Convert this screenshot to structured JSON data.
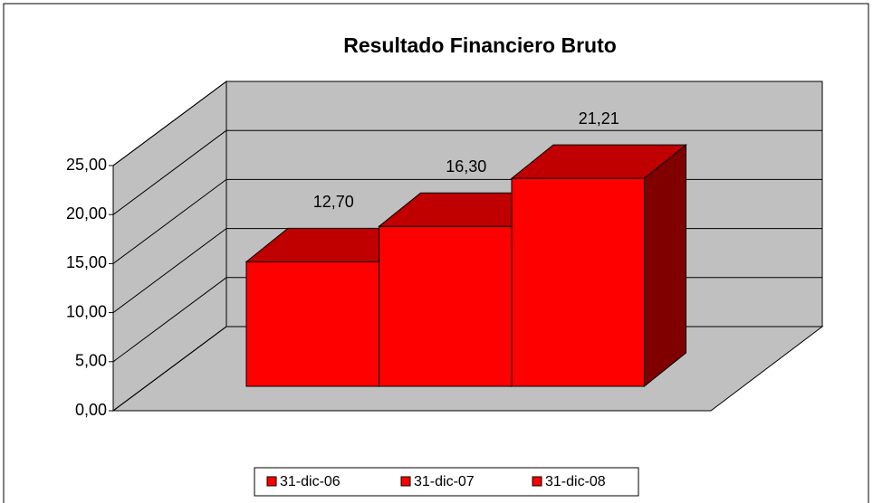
{
  "chart_data": {
    "type": "bar3d",
    "title": "Resultado Financiero Bruto",
    "series": [
      {
        "name": "31-dic-06",
        "color": "#ff0000",
        "values": [
          12.7
        ],
        "value_labels": [
          "12,70"
        ]
      },
      {
        "name": "31-dic-07",
        "color": "#ff0000",
        "values": [
          16.3
        ],
        "value_labels": [
          "16,30"
        ]
      },
      {
        "name": "31-dic-08",
        "color": "#ff0000",
        "values": [
          21.21
        ],
        "value_labels": [
          "21,21"
        ]
      }
    ],
    "ylim": [
      0,
      25
    ],
    "yticks": [
      {
        "value": 0,
        "label": "0,00"
      },
      {
        "value": 5,
        "label": "5,00"
      },
      {
        "value": 10,
        "label": "10,00"
      },
      {
        "value": 15,
        "label": "15,00"
      },
      {
        "value": 20,
        "label": "20,00"
      },
      {
        "value": 25,
        "label": "25,00"
      }
    ],
    "grid": true,
    "legend": "bottom"
  }
}
